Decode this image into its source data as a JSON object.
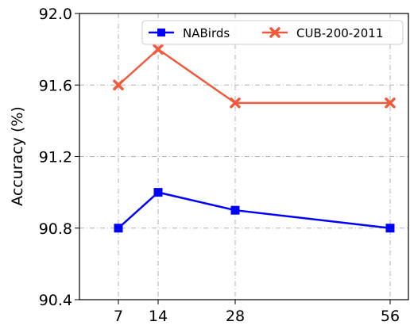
{
  "chart_data": {
    "type": "line",
    "title": "",
    "xlabel": "",
    "ylabel": "Accuracy (%)",
    "x": [
      7,
      14,
      28,
      56
    ],
    "x_tick_labels": [
      "7",
      "14",
      "28",
      "56"
    ],
    "ylim": [
      90.4,
      92.0
    ],
    "y_ticks": [
      90.4,
      90.8,
      91.2,
      91.6,
      92.0
    ],
    "y_tick_labels": [
      "90.4",
      "90.8",
      "91.2",
      "91.6",
      "92.0"
    ],
    "grid": true,
    "grid_style": "dashdot",
    "legend_placement": "top-right",
    "series": [
      {
        "name": "NABirds",
        "values": [
          90.8,
          91.0,
          90.9,
          90.8
        ],
        "color": "#0000ff",
        "marker": "square"
      },
      {
        "name": "CUB-200-2011",
        "values": [
          91.6,
          91.8,
          91.5,
          91.5
        ],
        "color": "#f05a3c",
        "marker": "x"
      }
    ]
  }
}
